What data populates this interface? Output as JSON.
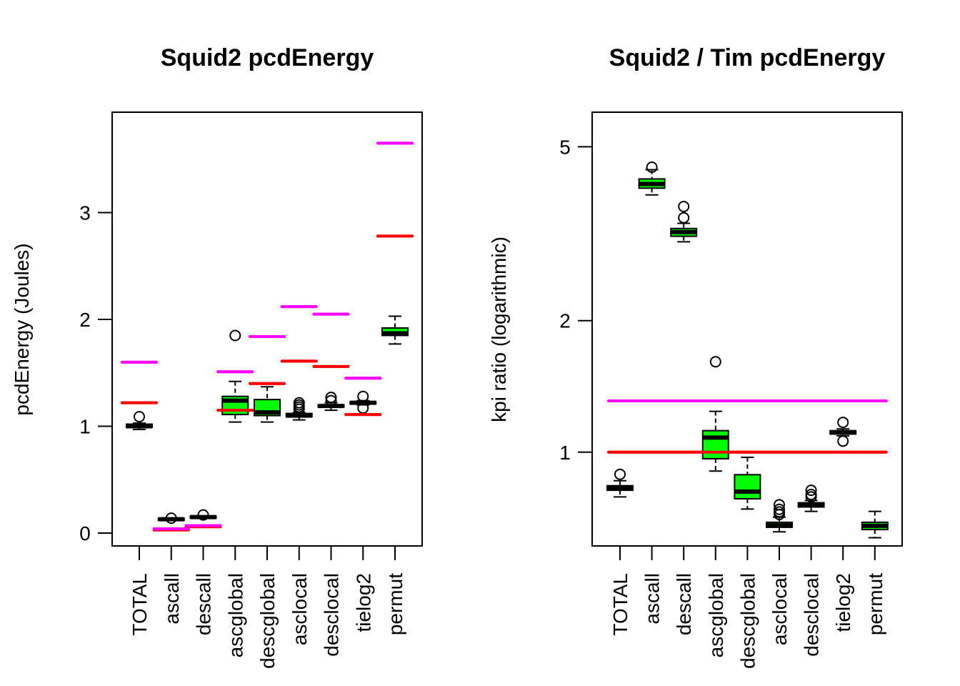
{
  "chart_data": [
    {
      "type": "box",
      "title": "Squid2 pcdEnergy",
      "xlabel": "",
      "ylabel": "pcdEnergy (Joules)",
      "yscale": "linear",
      "ylim": [
        -0.12,
        3.94
      ],
      "yticks": [
        0,
        1,
        2,
        3
      ],
      "ytick_labels": [
        "0",
        "1",
        "2",
        "3"
      ],
      "categories": [
        "TOTAL",
        "ascall",
        "descall",
        "ascglobal",
        "descglobal",
        "asclocal",
        "desclocal",
        "tielog2",
        "permut"
      ],
      "box_fill": "#00ff00",
      "boxes": [
        {
          "whisker_low": 0.97,
          "q1": 0.99,
          "median": 1.0,
          "q3": 1.02,
          "whisker_high": 1.03,
          "outliers": [
            1.09
          ]
        },
        {
          "whisker_low": 0.12,
          "q1": 0.12,
          "median": 0.13,
          "q3": 0.14,
          "whisker_high": 0.14,
          "outliers": [
            0.14
          ]
        },
        {
          "whisker_low": 0.14,
          "q1": 0.14,
          "median": 0.15,
          "q3": 0.16,
          "whisker_high": 0.16,
          "outliers": [
            0.17
          ]
        },
        {
          "whisker_low": 1.04,
          "q1": 1.11,
          "median": 1.24,
          "q3": 1.28,
          "whisker_high": 1.42,
          "outliers": [
            1.85
          ]
        },
        {
          "whisker_low": 1.04,
          "q1": 1.1,
          "median": 1.13,
          "q3": 1.25,
          "whisker_high": 1.37,
          "outliers": []
        },
        {
          "whisker_low": 1.06,
          "q1": 1.09,
          "median": 1.1,
          "q3": 1.12,
          "whisker_high": 1.13,
          "outliers": [
            1.16,
            1.18,
            1.2,
            1.22
          ]
        },
        {
          "whisker_low": 1.15,
          "q1": 1.18,
          "median": 1.19,
          "q3": 1.2,
          "whisker_high": 1.22,
          "outliers": [
            1.24,
            1.27
          ]
        },
        {
          "whisker_low": 1.2,
          "q1": 1.21,
          "median": 1.22,
          "q3": 1.23,
          "whisker_high": 1.24,
          "outliers": [
            1.28,
            1.17
          ]
        },
        {
          "whisker_low": 1.77,
          "q1": 1.85,
          "median": 1.87,
          "q3": 1.92,
          "whisker_high": 2.03,
          "outliers": []
        }
      ],
      "reference_lines": [
        {
          "name": "red",
          "color": "#ff0000",
          "values": [
            1.22,
            0.03,
            0.06,
            1.15,
            1.4,
            1.61,
            1.56,
            1.11,
            2.78
          ]
        },
        {
          "name": "magenta",
          "color": "#ff00ff",
          "values": [
            1.6,
            0.04,
            0.07,
            1.51,
            1.84,
            2.12,
            2.05,
            1.45,
            3.65
          ]
        }
      ]
    },
    {
      "type": "box",
      "title": "Squid2 / Tim pcdEnergy",
      "xlabel": "",
      "ylabel": "kpi ratio (logarithmic)",
      "yscale": "log",
      "ylim": [
        0.61,
        6.0
      ],
      "yticks": [
        1,
        2,
        5
      ],
      "ytick_labels": [
        "1",
        "2",
        "5"
      ],
      "categories": [
        "TOTAL",
        "ascall",
        "descall",
        "ascglobal",
        "descglobal",
        "asclocal",
        "desclocal",
        "tielog2",
        "permut"
      ],
      "box_fill": "#00ff00",
      "boxes": [
        {
          "whisker_low": 0.79,
          "q1": 0.818,
          "median": 0.828,
          "q3": 0.838,
          "whisker_high": 0.86,
          "outliers": [
            0.89
          ]
        },
        {
          "whisker_low": 3.88,
          "q1": 4.02,
          "median": 4.11,
          "q3": 4.22,
          "whisker_high": 4.43,
          "outliers": [
            4.49
          ]
        },
        {
          "whisker_low": 3.03,
          "q1": 3.12,
          "median": 3.19,
          "q3": 3.25,
          "whisker_high": 3.34,
          "outliers": [
            3.44,
            3.65
          ]
        },
        {
          "whisker_low": 0.905,
          "q1": 0.966,
          "median": 1.08,
          "q3": 1.12,
          "whisker_high": 1.24,
          "outliers": [
            1.61
          ]
        },
        {
          "whisker_low": 0.741,
          "q1": 0.782,
          "median": 0.812,
          "q3": 0.888,
          "whisker_high": 0.973,
          "outliers": []
        },
        {
          "whisker_low": 0.657,
          "q1": 0.673,
          "median": 0.68,
          "q3": 0.691,
          "whisker_high": 0.71,
          "outliers": [
            0.72,
            0.73,
            0.74,
            0.758
          ]
        },
        {
          "whisker_low": 0.732,
          "q1": 0.749,
          "median": 0.757,
          "q3": 0.766,
          "whisker_high": 0.775,
          "outliers": [
            0.79,
            0.8,
            0.818
          ]
        },
        {
          "whisker_low": 1.09,
          "q1": 1.1,
          "median": 1.11,
          "q3": 1.12,
          "whisker_high": 1.13,
          "outliers": [
            1.17,
            1.06
          ]
        },
        {
          "whisker_low": 0.637,
          "q1": 0.665,
          "median": 0.678,
          "q3": 0.691,
          "whisker_high": 0.732,
          "outliers": []
        }
      ],
      "reference_lines": [
        {
          "name": "red",
          "color": "#ff0000",
          "values": [
            1.0,
            1.0,
            1.0,
            1.0,
            1.0,
            1.0,
            1.0,
            1.0,
            1.0
          ],
          "continuous": true
        },
        {
          "name": "magenta",
          "color": "#ff00ff",
          "values": [
            1.31,
            1.31,
            1.31,
            1.31,
            1.31,
            1.31,
            1.31,
            1.31,
            1.31
          ],
          "continuous": true
        }
      ]
    }
  ]
}
